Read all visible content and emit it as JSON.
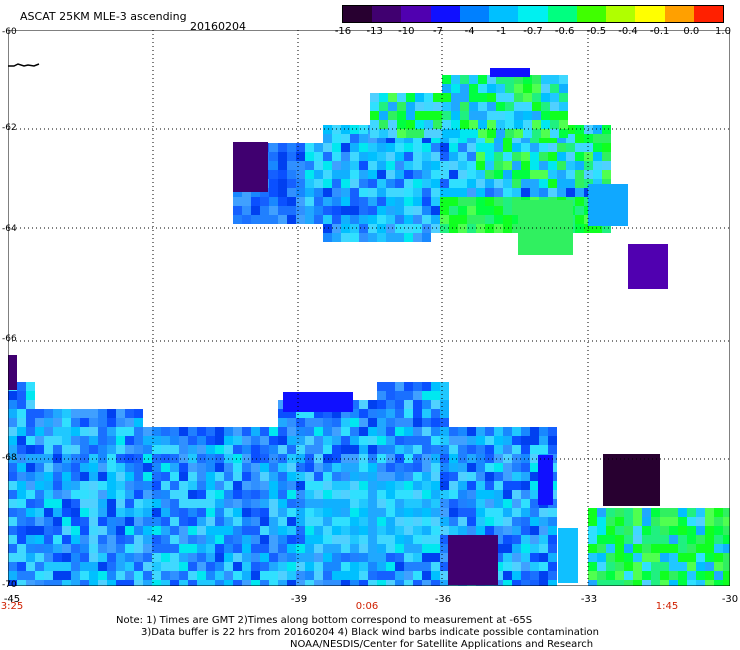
{
  "header": {
    "title": "ASCAT 25KM MLE-3 ascending",
    "date": "20160204"
  },
  "colorbar": {
    "labels": [
      "-16",
      "-13",
      "-10",
      "-7",
      "-4",
      "-1",
      "-0.7",
      "-0.6",
      "-0.5",
      "-0.4",
      "-0.1",
      "0.0",
      "1.0"
    ],
    "colors": [
      "#280030",
      "#400070",
      "#5000b0",
      "#1010ff",
      "#0080ff",
      "#00c0ff",
      "#00f0f0",
      "#00ff80",
      "#40ff00",
      "#b0ff00",
      "#ffff00",
      "#ffa000",
      "#ff2000"
    ]
  },
  "map": {
    "lat_labels": [
      "-60",
      "-62",
      "-64",
      "-66",
      "-68",
      "-70"
    ],
    "lon_labels": [
      "-45",
      "-42",
      "-39",
      "-36",
      "-33",
      "-30"
    ],
    "time_labels": [
      "3:25",
      "0:06",
      "1:45"
    ]
  },
  "footer": {
    "note_line1": "Note: 1) Times are GMT 2)Times along bottom correspond to measurement at -65S",
    "note_line2": "3)Data buffer is 22 hrs from 20160204 4) Black wind barbs indicate possible contamination",
    "note_line3": "NOAA/NESDIS/Center for Satellite Applications and Research"
  }
}
